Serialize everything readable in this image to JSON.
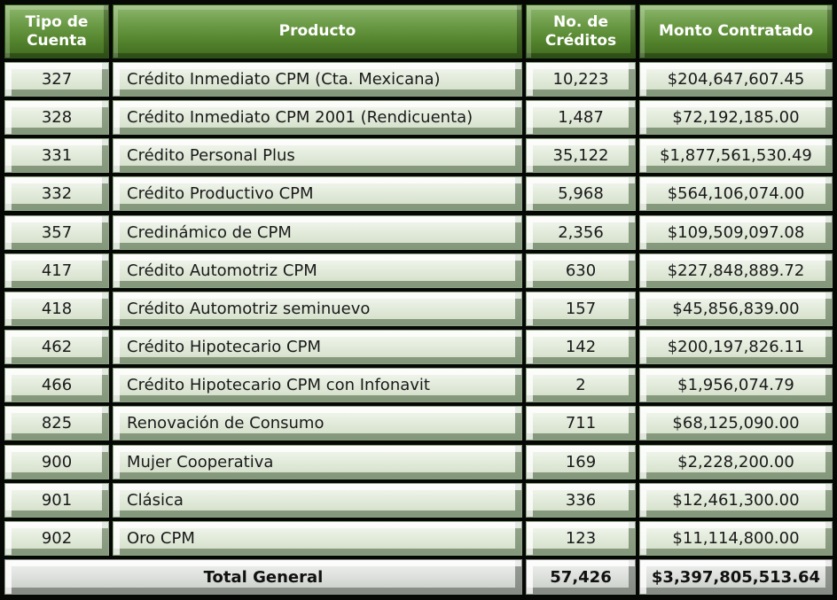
{
  "headers": {
    "tipo": [
      "Tipo de",
      "Cuenta"
    ],
    "producto": "Producto",
    "creditos": [
      "No. de",
      "Créditos"
    ],
    "monto": "Monto Contratado"
  },
  "rows": [
    {
      "tipo": "327",
      "producto": "Crédito Inmediato CPM (Cta. Mexicana)",
      "creditos": "10,223",
      "monto": "$204,647,607.45"
    },
    {
      "tipo": "328",
      "producto": "Crédito Inmediato CPM 2001 (Rendicuenta)",
      "creditos": "1,487",
      "monto": "$72,192,185.00"
    },
    {
      "tipo": "331",
      "producto": "Crédito Personal Plus",
      "creditos": "35,122",
      "monto": "$1,877,561,530.49"
    },
    {
      "tipo": "332",
      "producto": "Crédito Productivo CPM",
      "creditos": "5,968",
      "monto": "$564,106,074.00"
    },
    {
      "tipo": "357",
      "producto": "Credinámico de CPM",
      "creditos": "2,356",
      "monto": "$109,509,097.08"
    },
    {
      "tipo": "417",
      "producto": "Crédito Automotriz CPM",
      "creditos": "630",
      "monto": "$227,848,889.72"
    },
    {
      "tipo": "418",
      "producto": "Crédito Automotriz seminuevo",
      "creditos": "157",
      "monto": "$45,856,839.00"
    },
    {
      "tipo": "462",
      "producto": "Crédito Hipotecario CPM",
      "creditos": "142",
      "monto": "$200,197,826.11"
    },
    {
      "tipo": "466",
      "producto": "Crédito Hipotecario CPM con Infonavit",
      "creditos": "2",
      "monto": "$1,956,074.79"
    },
    {
      "tipo": "825",
      "producto": "Renovación de Consumo",
      "creditos": "711",
      "monto": "$68,125,090.00"
    },
    {
      "tipo": "900",
      "producto": "Mujer Cooperativa",
      "creditos": "169",
      "monto": "$2,228,200.00"
    },
    {
      "tipo": "901",
      "producto": "Clásica",
      "creditos": "336",
      "monto": "$12,461,300.00"
    },
    {
      "tipo": "902",
      "producto": "Oro CPM",
      "creditos": "123",
      "monto": "$11,114,800.00"
    }
  ],
  "total": {
    "label": "Total General",
    "creditos": "57,426",
    "monto": "$3,397,805,513.64"
  },
  "colors": {
    "header_green": "#5b8a35",
    "row_fill": "#e4ecdd",
    "total_fill": "#dfe2de"
  }
}
